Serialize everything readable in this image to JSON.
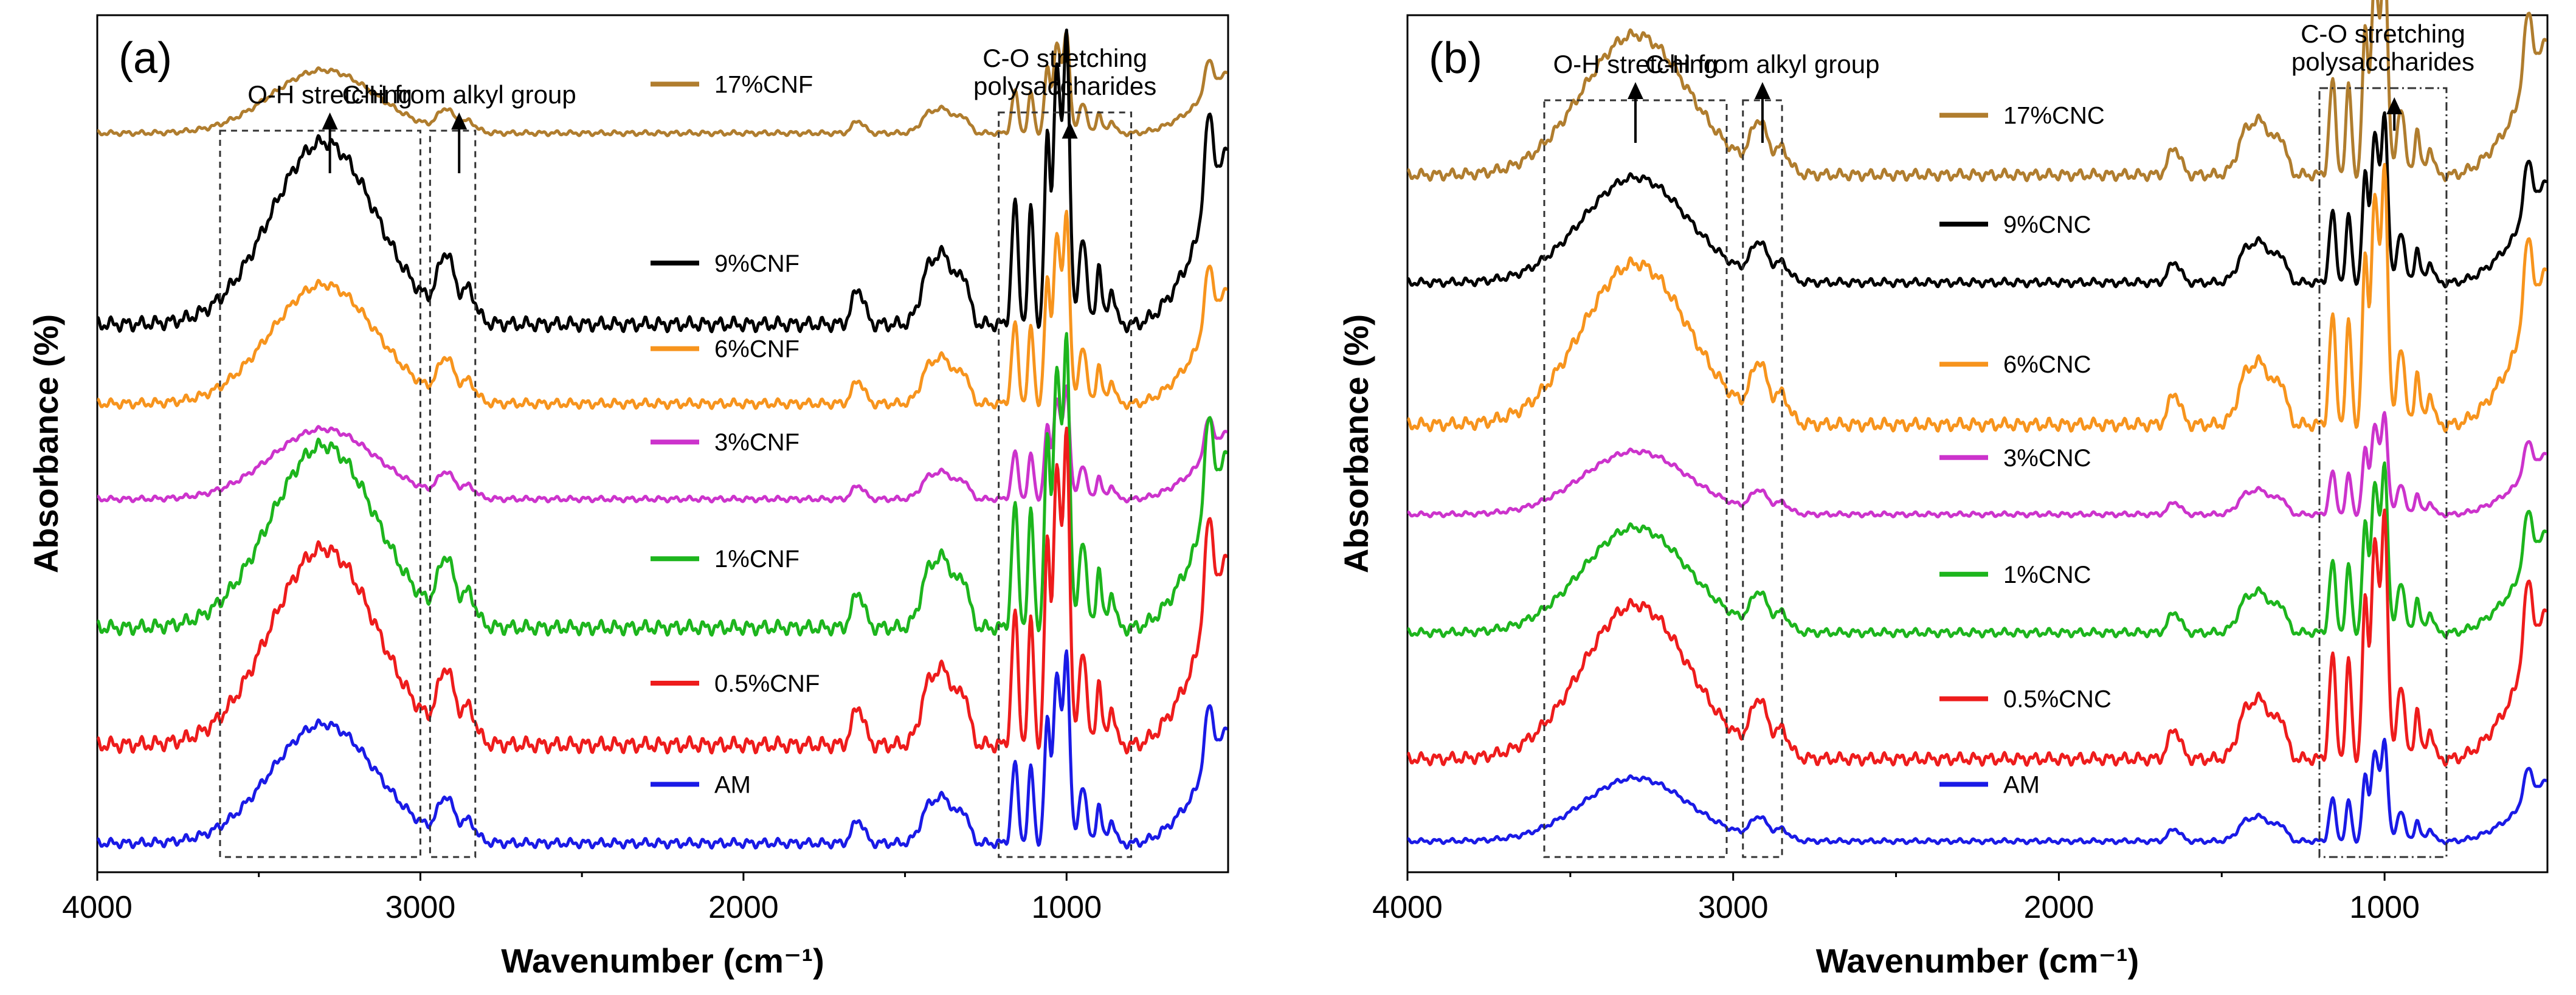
{
  "chart_data": [
    {
      "panel": "(a)",
      "type": "line",
      "xlabel": "Wavenumber (cm⁻¹)",
      "ylabel": "Absorbance (%)",
      "xlim": [
        4000,
        500
      ],
      "x_ticks": [
        4000,
        3000,
        2000,
        1000
      ],
      "annotations": [
        {
          "label": "O-H stretching",
          "from": 3620,
          "to": 3000,
          "arrow_at": 3280
        },
        {
          "label": "C-H from alkyl group",
          "from": 2970,
          "to": 2830,
          "arrow_at": 2880
        },
        {
          "label_lines": [
            "C-O stretching",
            "polysaccharides"
          ],
          "from": 1210,
          "to": 800,
          "arrow_at": 990
        }
      ],
      "series": [
        {
          "name": "17%CNF",
          "color": "#B07D2E",
          "baseline": 0.9,
          "scale": 0.45,
          "offset": 0.01
        },
        {
          "name": "9%CNF",
          "color": "#000000",
          "baseline": 0.67,
          "scale": 1.3,
          "offset": 0.0
        },
        {
          "name": "6%CNF",
          "color": "#F7941D",
          "baseline": 0.56,
          "scale": 0.85,
          "offset": 0.005
        },
        {
          "name": "3%CNF",
          "color": "#CC33CC",
          "baseline": 0.44,
          "scale": 0.5,
          "offset": 0.0
        },
        {
          "name": "1%CNF",
          "color": "#1DB51D",
          "baseline": 0.29,
          "scale": 1.3,
          "offset": -0.01
        },
        {
          "name": "0.5%CNF",
          "color": "#EE1C1C",
          "baseline": 0.13,
          "scale": 1.4,
          "offset": 0.0
        },
        {
          "name": "AM",
          "color": "#1A1AE6",
          "baseline": 0.0,
          "scale": 0.85,
          "offset": 0.0
        }
      ]
    },
    {
      "panel": "(b)",
      "type": "line",
      "xlabel": "Wavenumber (cm⁻¹)",
      "ylabel": "Absorbance (%)",
      "xlim": [
        4000,
        500
      ],
      "x_ticks": [
        4000,
        3000,
        2000,
        1000
      ],
      "annotations": [
        {
          "label": "O-H stretching",
          "from": 3580,
          "to": 3020,
          "arrow_at": 3300
        },
        {
          "label": "C-H from alkyl group",
          "from": 2970,
          "to": 2850,
          "arrow_at": 2910
        },
        {
          "label_lines": [
            "C-O stretching",
            "polysaccharides"
          ],
          "from": 1200,
          "to": 810,
          "arrow_at": 970
        }
      ],
      "series": [
        {
          "name": "17%CNC",
          "color": "#B07D2E",
          "baseline": 0.86,
          "scale": 1.0,
          "offset": 0.0
        },
        {
          "name": "9%CNC",
          "color": "#000000",
          "baseline": 0.72,
          "scale": 0.75,
          "offset": 0.0
        },
        {
          "name": "6%CNC",
          "color": "#F7941D",
          "baseline": 0.54,
          "scale": 1.15,
          "offset": 0.0
        },
        {
          "name": "3%CNC",
          "color": "#CC33CC",
          "baseline": 0.42,
          "scale": 0.45,
          "offset": 0.0
        },
        {
          "name": "1%CNC",
          "color": "#1DB51D",
          "baseline": 0.27,
          "scale": 0.75,
          "offset": 0.0
        },
        {
          "name": "0.5%CNC",
          "color": "#EE1C1C",
          "baseline": 0.11,
          "scale": 1.1,
          "offset": 0.0
        },
        {
          "name": "AM",
          "color": "#1A1AE6",
          "baseline": 0.0,
          "scale": 0.45,
          "offset": 0.0
        }
      ]
    }
  ]
}
